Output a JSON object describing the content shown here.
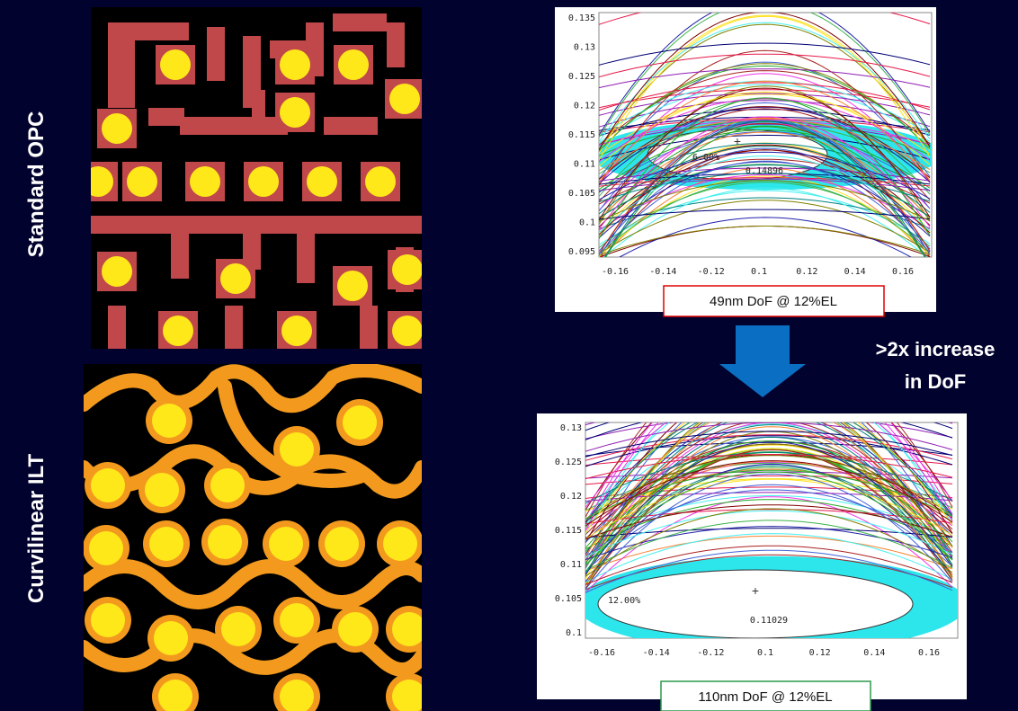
{
  "labels": {
    "standard": "Standard OPC",
    "ilt": "Curvilinear ILT"
  },
  "top_plot": {
    "yticks": [
      "0.135",
      "0.13",
      "0.125",
      "0.12",
      "0.115",
      "0.11",
      "0.105",
      "0.1",
      "0.095"
    ],
    "xticks": [
      "-0.16",
      "-0.14",
      "-0.12",
      "0.1",
      "0.12",
      "0.14",
      "0.16"
    ],
    "annotations": [
      "6.00%",
      "0.14896"
    ],
    "caption": "49nm DoF @ 12%EL"
  },
  "increase": {
    "line1": ">2x increase",
    "line2": "in DoF"
  },
  "bottom_plot": {
    "yticks": [
      "0.13",
      "0.125",
      "0.12",
      "0.115",
      "0.11",
      "0.105",
      "0.1"
    ],
    "xticks": [
      "-0.16",
      "-0.14",
      "-0.12",
      "0.1",
      "0.12",
      "0.14",
      "0.16"
    ],
    "annotations": [
      "12.00%",
      "0.11029"
    ],
    "caption": "110nm DoF @ 12%EL"
  }
}
